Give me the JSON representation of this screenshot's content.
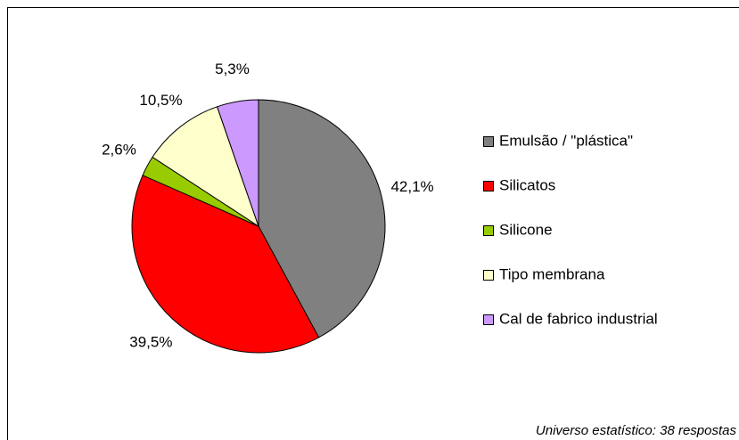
{
  "chart_data": {
    "type": "pie",
    "categories": [
      "Emulsão / \"plástica\"",
      "Silicatos",
      "Silicone",
      "Tipo membrana",
      "Cal de fabrico industrial"
    ],
    "values": [
      42.1,
      39.5,
      2.6,
      10.5,
      5.3
    ],
    "value_labels": [
      "42,1%",
      "39,5%",
      "2,6%",
      "10,5%",
      "5,3%"
    ],
    "colors": [
      "#808080",
      "#ff0000",
      "#99cc00",
      "#ffffcc",
      "#cc99ff"
    ],
    "legend": "right",
    "annotation": "Universo estatístico: 38 respostas"
  }
}
